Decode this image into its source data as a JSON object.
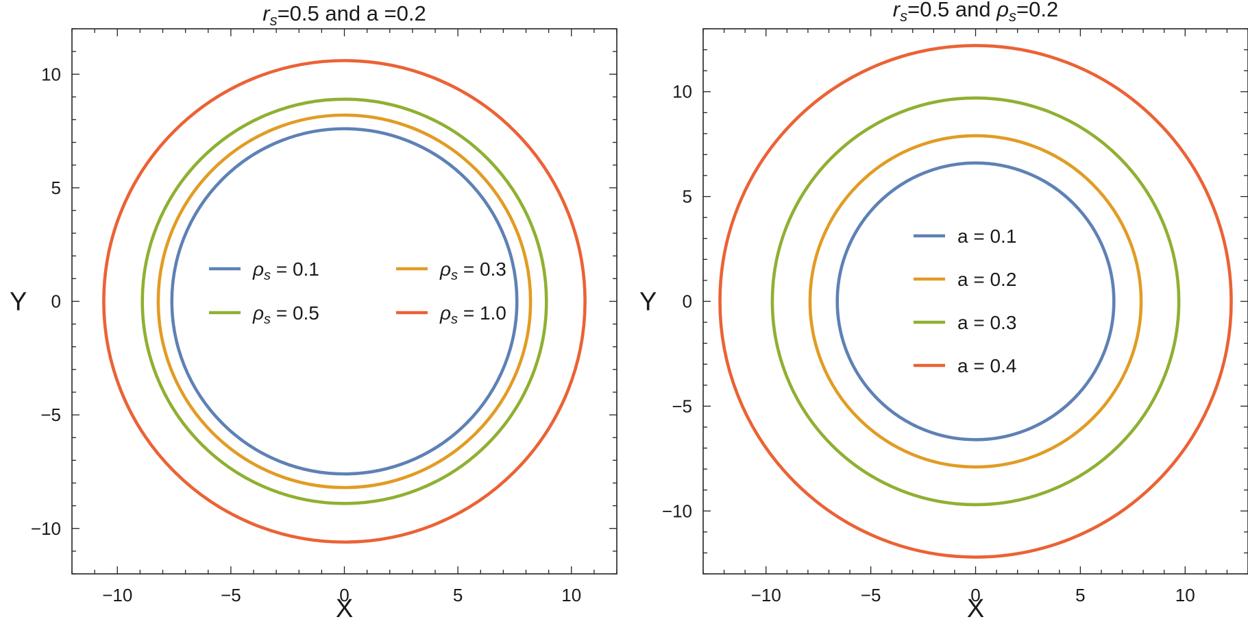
{
  "chart_data": [
    {
      "type": "line",
      "title": "rs=0.5 and a =0.2",
      "title_parts": {
        "sym": "r",
        "sub": "s",
        "rest": "=0.5 and a =0.2"
      },
      "xlabel": "X",
      "ylabel": "Y",
      "xlim": [
        -12,
        12
      ],
      "ylim": [
        -12,
        12
      ],
      "xticks": [
        -10,
        -5,
        0,
        5,
        10
      ],
      "yticks": [
        -10,
        -5,
        0,
        5,
        10
      ],
      "xtick_labels": [
        "−10",
        "−5",
        "0",
        "5",
        "10"
      ],
      "ytick_labels": [
        "−10",
        "−5",
        "0",
        "5",
        "10"
      ],
      "grid": false,
      "legend_placement": "center",
      "legend_columns": 2,
      "series": [
        {
          "name": "ρs = 0.1",
          "name_sym": "ρ",
          "name_sub": "s",
          "name_rest": " = 0.1",
          "radius": 7.6,
          "color": "#5e81b5"
        },
        {
          "name": "ρs = 0.3",
          "name_sym": "ρ",
          "name_sub": "s",
          "name_rest": " = 0.3",
          "radius": 8.2,
          "color": "#e19c24"
        },
        {
          "name": "ρs = 0.5",
          "name_sym": "ρ",
          "name_sub": "s",
          "name_rest": " = 0.5",
          "radius": 8.9,
          "color": "#8fb032"
        },
        {
          "name": "ρs = 1.0",
          "name_sym": "ρ",
          "name_sub": "s",
          "name_rest": " = 1.0",
          "radius": 10.6,
          "color": "#eb6235"
        }
      ]
    },
    {
      "type": "line",
      "title": "rs=0.5 and  ρs=0.2",
      "title_parts": {
        "sym": "r",
        "sub": "s",
        "rest": "=0.5 and ",
        "sym2": "ρ",
        "sub2": "s",
        "rest2": "=0.2"
      },
      "xlabel": "X",
      "ylabel": "Y",
      "xlim": [
        -13,
        13
      ],
      "ylim": [
        -13,
        13
      ],
      "xticks": [
        -10,
        -5,
        0,
        5,
        10
      ],
      "yticks": [
        -10,
        -5,
        0,
        5,
        10
      ],
      "xtick_labels": [
        "−10",
        "−5",
        "0",
        "5",
        "10"
      ],
      "ytick_labels": [
        "−10",
        "−5",
        "0",
        "5",
        "10"
      ],
      "grid": false,
      "legend_placement": "center",
      "legend_columns": 1,
      "series": [
        {
          "name": "a = 0.1",
          "radius": 6.6,
          "color": "#5e81b5"
        },
        {
          "name": "a = 0.2",
          "radius": 7.9,
          "color": "#e19c24"
        },
        {
          "name": "a = 0.3",
          "radius": 9.7,
          "color": "#8fb032"
        },
        {
          "name": "a = 0.4",
          "radius": 12.2,
          "color": "#eb6235"
        }
      ]
    }
  ]
}
